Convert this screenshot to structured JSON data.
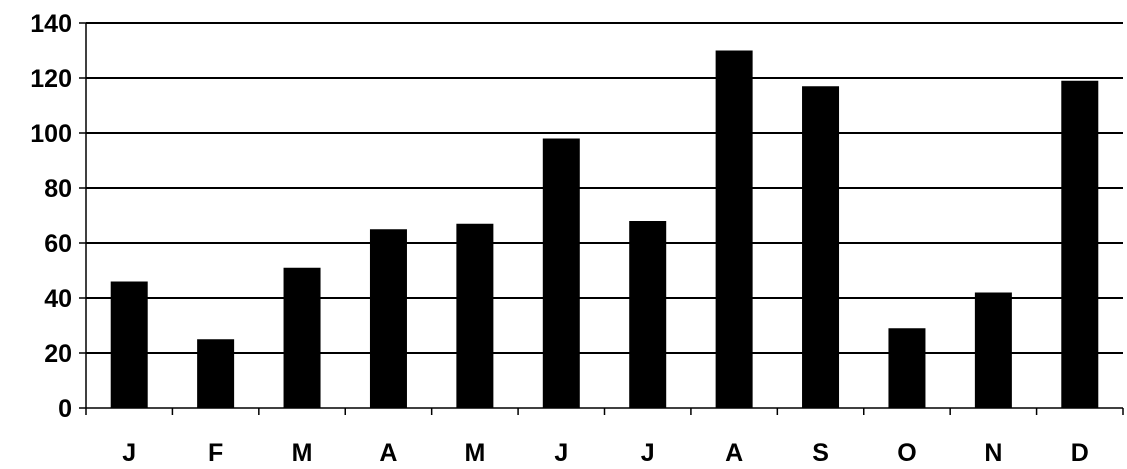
{
  "chart_data": {
    "type": "bar",
    "title": "",
    "xlabel": "",
    "ylabel": "",
    "categories": [
      "J",
      "F",
      "M",
      "A",
      "M",
      "J",
      "J",
      "A",
      "S",
      "O",
      "N",
      "D"
    ],
    "values": [
      46,
      25,
      51,
      65,
      67,
      98,
      68,
      130,
      117,
      29,
      42,
      119
    ],
    "ylim": [
      0,
      140
    ],
    "yticks": [
      0,
      20,
      40,
      60,
      80,
      100,
      120,
      140
    ],
    "grid": "horizontal",
    "legend": "none",
    "colors": {
      "bar": "#000000",
      "gridline": "#000000",
      "axis": "#000000",
      "background": "#ffffff"
    }
  }
}
